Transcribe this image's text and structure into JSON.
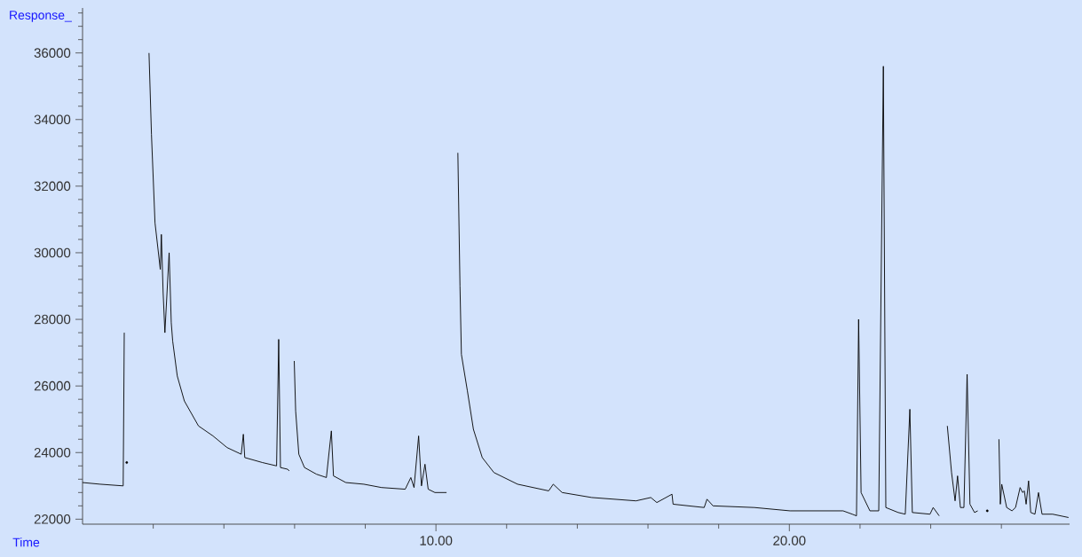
{
  "chart_data": {
    "type": "line",
    "xlabel": "Time",
    "ylabel": "Response_",
    "xlim": [
      0,
      27.93
    ],
    "ylim": [
      21850,
      37350
    ],
    "xticks": [
      {
        "value": 2,
        "label": null
      },
      {
        "value": 4,
        "label": null
      },
      {
        "value": 6,
        "label": null
      },
      {
        "value": 8,
        "label": null
      },
      {
        "value": 10,
        "label": "10.00"
      },
      {
        "value": 12,
        "label": null
      },
      {
        "value": 14,
        "label": null
      },
      {
        "value": 16,
        "label": null
      },
      {
        "value": 18,
        "label": null
      },
      {
        "value": 20,
        "label": "20.00"
      },
      {
        "value": 22,
        "label": null
      },
      {
        "value": 24,
        "label": null
      },
      {
        "value": 26,
        "label": null
      }
    ],
    "yticks": [
      22000,
      {
        "value": 22400,
        "label": null
      },
      {
        "value": 22800,
        "label": null
      },
      {
        "value": 23200,
        "label": null
      },
      {
        "value": 23600,
        "label": null
      },
      24000,
      {
        "value": 24400,
        "label": null
      },
      {
        "value": 24800,
        "label": null
      },
      {
        "value": 25200,
        "label": null
      },
      {
        "value": 25600,
        "label": null
      },
      26000,
      {
        "value": 26400,
        "label": null
      },
      {
        "value": 26800,
        "label": null
      },
      {
        "value": 27200,
        "label": null
      },
      {
        "value": 27600,
        "label": null
      },
      28000,
      {
        "value": 28400,
        "label": null
      },
      {
        "value": 28800,
        "label": null
      },
      {
        "value": 29200,
        "label": null
      },
      {
        "value": 29600,
        "label": null
      },
      30000,
      {
        "value": 30400,
        "label": null
      },
      {
        "value": 30800,
        "label": null
      },
      {
        "value": 31200,
        "label": null
      },
      {
        "value": 31600,
        "label": null
      },
      32000,
      {
        "value": 32400,
        "label": null
      },
      {
        "value": 32800,
        "label": null
      },
      {
        "value": 33200,
        "label": null
      },
      {
        "value": 33600,
        "label": null
      },
      34000,
      {
        "value": 34400,
        "label": null
      },
      {
        "value": 34800,
        "label": null
      },
      {
        "value": 35200,
        "label": null
      },
      {
        "value": 35600,
        "label": null
      },
      36000,
      {
        "value": 36400,
        "label": null
      },
      {
        "value": 36800,
        "label": null
      },
      {
        "value": 37200,
        "label": null
      }
    ],
    "series": [
      {
        "color": "#000000",
        "x": [
          0,
          0.5,
          1.15,
          1.18,
          1.2,
          1.24,
          1.25,
          1.27,
          1.83,
          1.88,
          1.95,
          2.05,
          2.2,
          2.23,
          2.28,
          2.33,
          2.45,
          2.51,
          2.55,
          2.68,
          2.88,
          3.28,
          3.69,
          4.09,
          4.49,
          4.55,
          4.59,
          5.09,
          5.49,
          5.55,
          5.6,
          5.8,
          5.85,
          5.87,
          5.98,
          5.99,
          6.03,
          6.12,
          6.28,
          6.62,
          6.9,
          7.04,
          7.1,
          7.45,
          7.96,
          8.46,
          9.13,
          9.29,
          9.38,
          9.51,
          9.59,
          9.69,
          9.78,
          9.97,
          10.3,
          10.33,
          10.57,
          10.62,
          10.68,
          10.72,
          10.89,
          11.06,
          11.31,
          11.64,
          12.31,
          13.19,
          13.32,
          13.57,
          14.41,
          15.66,
          16.08,
          16.25,
          16.68,
          16.71,
          17.59,
          17.67,
          17.84,
          19.01,
          20.02,
          21.52,
          21.78,
          21.9,
          21.96,
          22.03,
          22.28,
          22.53,
          22.66,
          22.73,
          23.08,
          23.28,
          23.41,
          23.48,
          23.98,
          24.07,
          24.24,
          24.34,
          24.41,
          24.47,
          24.59,
          24.69,
          24.76,
          24.84,
          24.94,
          25.03,
          25.11,
          25.24,
          25.33,
          25.4,
          25.47,
          25.6,
          25.75,
          25.8,
          25.87,
          25.93,
          25.97,
          26.01,
          26.15,
          26.3,
          26.4,
          26.53,
          26.6,
          26.65,
          26.7,
          26.77,
          26.83,
          26.95,
          27.05,
          27.15,
          27.45,
          27.9
        ],
        "values": [
          23100,
          23050,
          23000,
          27600,
          null,
          null,
          23700,
          null,
          null,
          36000,
          33550,
          30900,
          29500,
          30550,
          28800,
          27600,
          30000,
          27900,
          27350,
          26300,
          25550,
          24800,
          24500,
          24150,
          23950,
          24550,
          23850,
          23700,
          23600,
          27400,
          23550,
          23500,
          23450,
          null,
          null,
          26750,
          25250,
          23950,
          23550,
          23350,
          23250,
          24650,
          23300,
          23100,
          23050,
          22950,
          22900,
          23250,
          22950,
          24500,
          23000,
          23650,
          22900,
          22800,
          22800,
          null,
          null,
          33000,
          29000,
          26950,
          25850,
          24700,
          23850,
          23400,
          23050,
          22850,
          23050,
          22800,
          22650,
          22550,
          22650,
          22500,
          22750,
          22450,
          22350,
          22600,
          22400,
          22350,
          22250,
          22250,
          22150,
          22100,
          28000,
          22800,
          22250,
          22250,
          35600,
          22350,
          22200,
          22150,
          25300,
          22200,
          22150,
          22350,
          22100,
          null,
          null,
          24800,
          23400,
          22550,
          23300,
          22350,
          22350,
          26350,
          22450,
          22200,
          22250,
          null,
          null,
          22250,
          null,
          null,
          null,
          24400,
          22450,
          23050,
          22350,
          22250,
          22350,
          22950,
          22800,
          22850,
          22450,
          23150,
          22200,
          22150,
          22800,
          22150,
          22150,
          22050
        ]
      }
    ]
  }
}
